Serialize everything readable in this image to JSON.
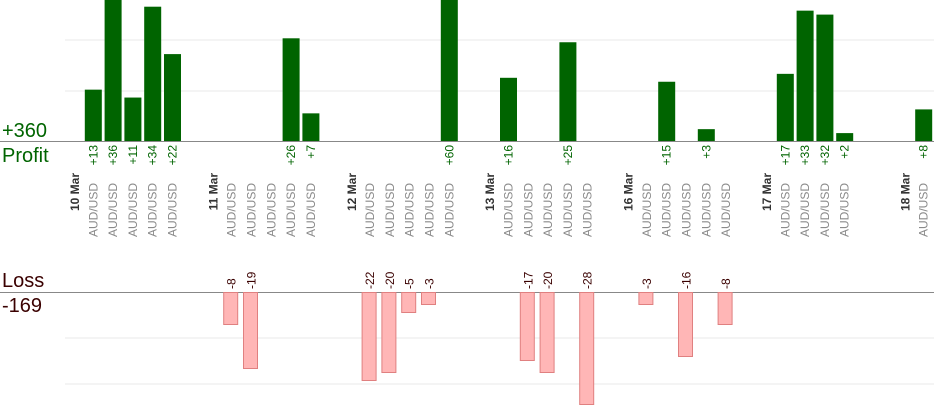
{
  "chart_data": {
    "type": "bar",
    "profit_total": "+360",
    "profit_label": "Profit",
    "loss_label": "Loss",
    "loss_total": "-169",
    "symbol": "AUD/USD",
    "days": [
      "10 Mar",
      "11 Mar",
      "12 Mar",
      "13 Mar",
      "16 Mar",
      "17 Mar",
      "18 Mar"
    ],
    "slots": [
      {
        "day": 0,
        "trades": [
          13,
          36,
          11,
          34,
          22
        ]
      },
      {
        "day": 1,
        "trades": [
          -8,
          -19,
          null,
          26,
          7
        ]
      },
      {
        "day": 2,
        "trades": [
          -22,
          -20,
          -5,
          -3,
          60
        ]
      },
      {
        "day": 3,
        "trades": [
          16,
          -17,
          -20,
          25,
          -28
        ]
      },
      {
        "day": 4,
        "trades": [
          -3,
          15,
          -16,
          3,
          -8
        ]
      },
      {
        "day": 5,
        "trades": [
          17,
          33,
          32,
          2
        ]
      },
      {
        "day": 6,
        "trades": [
          8
        ]
      }
    ],
    "profit_axis_max": 36,
    "loss_axis_max": 30,
    "colors": {
      "profit_bar": "#006400",
      "loss_bar_fill": "#ffb6b6",
      "loss_bar_stroke": "#e08080",
      "profit_text": "#006400",
      "loss_text": "#3a0000",
      "date_text": "#333333",
      "symbol_text": "#8a8a8a",
      "grid": "#e8e8e8",
      "baseline": "#888888"
    },
    "grid": true
  }
}
